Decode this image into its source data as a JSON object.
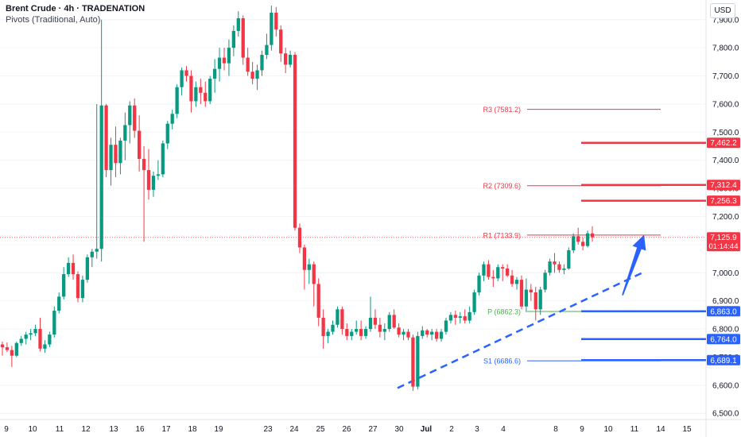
{
  "header": {
    "title": "Brent Crude · 4h · TRADENATION",
    "indicator": "Pivots (Traditional, Auto)",
    "currency": "USD"
  },
  "colors": {
    "up": "#089981",
    "down": "#f23645",
    "resistance": "#f23645",
    "support": "#2962ff",
    "pivot": "#4caf50",
    "trendline": "#2962ff",
    "arrow": "#2962ff"
  },
  "chart_data": {
    "type": "candlestick",
    "title": "Brent Crude · 4h · TRADENATION",
    "ylim": [
      6478,
      7970
    ],
    "y_ticks": [
      "6,500.0",
      "6,600.0",
      "6,700.0",
      "6,800.0",
      "6,900.0",
      "7,000.0",
      "7,100.0",
      "7,200.0",
      "7,300.0",
      "7,400.0",
      "7,500.0",
      "7,600.0",
      "7,700.0",
      "7,800.0",
      "7,900.0"
    ],
    "x_ticks": [
      "9",
      "10",
      "11",
      "12",
      "13",
      "16",
      "17",
      "18",
      "19",
      "23",
      "24",
      "25",
      "26",
      "27",
      "30",
      "Jul",
      "2",
      "3",
      "4",
      "8",
      "9",
      "10",
      "11",
      "14",
      "15"
    ],
    "candles": [
      [
        6745,
        6755,
        6705,
        6735
      ],
      [
        6735,
        6752,
        6718,
        6725
      ],
      [
        6725,
        6740,
        6665,
        6705
      ],
      [
        6705,
        6755,
        6700,
        6750
      ],
      [
        6750,
        6775,
        6740,
        6765
      ],
      [
        6765,
        6790,
        6745,
        6780
      ],
      [
        6780,
        6800,
        6760,
        6785
      ],
      [
        6785,
        6815,
        6775,
        6800
      ],
      [
        6800,
        6840,
        6720,
        6730
      ],
      [
        6730,
        6760,
        6715,
        6745
      ],
      [
        6745,
        6790,
        6735,
        6780
      ],
      [
        6780,
        6880,
        6770,
        6865
      ],
      [
        6865,
        6930,
        6855,
        6915
      ],
      [
        6915,
        7020,
        6905,
        6995
      ],
      [
        6995,
        7055,
        6985,
        7035
      ],
      [
        7035,
        7065,
        6975,
        6995
      ],
      [
        6995,
        7005,
        6895,
        6910
      ],
      [
        6910,
        6990,
        6895,
        6975
      ],
      [
        6975,
        7065,
        6965,
        7055
      ],
      [
        7055,
        7085,
        7020,
        7075
      ],
      [
        7075,
        7600,
        7050,
        7085
      ],
      [
        7085,
        7900,
        7040,
        7595
      ],
      [
        7595,
        7600,
        7340,
        7365
      ],
      [
        7365,
        7480,
        7310,
        7455
      ],
      [
        7455,
        7520,
        7340,
        7390
      ],
      [
        7390,
        7480,
        7350,
        7470
      ],
      [
        7470,
        7570,
        7400,
        7525
      ],
      [
        7525,
        7610,
        7460,
        7595
      ],
      [
        7595,
        7620,
        7480,
        7505
      ],
      [
        7505,
        7560,
        7360,
        7405
      ],
      [
        7405,
        7450,
        7110,
        7365
      ],
      [
        7365,
        7440,
        7260,
        7295
      ],
      [
        7295,
        7360,
        7270,
        7345
      ],
      [
        7345,
        7400,
        7330,
        7350
      ],
      [
        7350,
        7470,
        7340,
        7460
      ],
      [
        7460,
        7540,
        7440,
        7530
      ],
      [
        7530,
        7580,
        7510,
        7565
      ],
      [
        7565,
        7670,
        7550,
        7660
      ],
      [
        7660,
        7730,
        7630,
        7720
      ],
      [
        7720,
        7735,
        7680,
        7700
      ],
      [
        7700,
        7720,
        7570,
        7610
      ],
      [
        7610,
        7680,
        7590,
        7660
      ],
      [
        7660,
        7690,
        7600,
        7640
      ],
      [
        7640,
        7680,
        7590,
        7610
      ],
      [
        7610,
        7700,
        7600,
        7690
      ],
      [
        7690,
        7760,
        7640,
        7725
      ],
      [
        7725,
        7800,
        7680,
        7765
      ],
      [
        7765,
        7800,
        7720,
        7745
      ],
      [
        7745,
        7830,
        7700,
        7800
      ],
      [
        7800,
        7880,
        7770,
        7860
      ],
      [
        7860,
        7930,
        7840,
        7905
      ],
      [
        7905,
        7915,
        7740,
        7765
      ],
      [
        7765,
        7800,
        7700,
        7715
      ],
      [
        7715,
        7750,
        7670,
        7690
      ],
      [
        7690,
        7740,
        7650,
        7720
      ],
      [
        7720,
        7790,
        7700,
        7775
      ],
      [
        7775,
        7850,
        7760,
        7810
      ],
      [
        7810,
        7950,
        7790,
        7925
      ],
      [
        7925,
        7945,
        7840,
        7865
      ],
      [
        7865,
        7880,
        7750,
        7780
      ],
      [
        7780,
        7800,
        7710,
        7740
      ],
      [
        7740,
        7790,
        7730,
        7775
      ],
      [
        7775,
        7785,
        7150,
        7160
      ],
      [
        7160,
        7175,
        7070,
        7090
      ],
      [
        7090,
        7100,
        6940,
        7010
      ],
      [
        7010,
        7050,
        6960,
        7030
      ],
      [
        7030,
        7040,
        6880,
        6960
      ],
      [
        6960,
        6980,
        6810,
        6840
      ],
      [
        6840,
        6870,
        6730,
        6775
      ],
      [
        6775,
        6800,
        6750,
        6790
      ],
      [
        6790,
        6830,
        6780,
        6815
      ],
      [
        6815,
        6880,
        6805,
        6870
      ],
      [
        6870,
        6880,
        6780,
        6800
      ],
      [
        6800,
        6820,
        6760,
        6775
      ],
      [
        6775,
        6800,
        6760,
        6790
      ],
      [
        6790,
        6830,
        6780,
        6800
      ],
      [
        6800,
        6830,
        6760,
        6775
      ],
      [
        6775,
        6810,
        6765,
        6800
      ],
      [
        6800,
        6915,
        6790,
        6840
      ],
      [
        6840,
        6870,
        6800,
        6815
      ],
      [
        6815,
        6840,
        6770,
        6790
      ],
      [
        6790,
        6820,
        6760,
        6800
      ],
      [
        6800,
        6860,
        6790,
        6850
      ],
      [
        6850,
        6870,
        6800,
        6805
      ],
      [
        6805,
        6820,
        6770,
        6780
      ],
      [
        6780,
        6800,
        6760,
        6790
      ],
      [
        6790,
        6800,
        6760,
        6770
      ],
      [
        6770,
        6780,
        6580,
        6595
      ],
      [
        6595,
        6790,
        6585,
        6775
      ],
      [
        6775,
        6810,
        6765,
        6795
      ],
      [
        6795,
        6800,
        6770,
        6780
      ],
      [
        6780,
        6800,
        6760,
        6790
      ],
      [
        6790,
        6800,
        6755,
        6765
      ],
      [
        6765,
        6800,
        6755,
        6790
      ],
      [
        6790,
        6840,
        6780,
        6830
      ],
      [
        6830,
        6860,
        6820,
        6850
      ],
      [
        6850,
        6865,
        6815,
        6840
      ],
      [
        6840,
        6860,
        6820,
        6845
      ],
      [
        6845,
        6870,
        6820,
        6830
      ],
      [
        6830,
        6880,
        6820,
        6860
      ],
      [
        6860,
        6940,
        6850,
        6930
      ],
      [
        6930,
        7000,
        6920,
        6990
      ],
      [
        6990,
        7040,
        6970,
        7030
      ],
      [
        7030,
        7045,
        6975,
        6985
      ],
      [
        6985,
        7010,
        6950,
        6980
      ],
      [
        6980,
        7030,
        6970,
        7020
      ],
      [
        7020,
        7030,
        6970,
        7015
      ],
      [
        7015,
        7030,
        6985,
        6990
      ],
      [
        6990,
        7010,
        6950,
        6960
      ],
      [
        6960,
        6985,
        6940,
        6975
      ],
      [
        6975,
        6990,
        6870,
        6880
      ],
      [
        6880,
        6980,
        6860,
        6940
      ],
      [
        6940,
        6960,
        6900,
        6930
      ],
      [
        6930,
        6950,
        6830,
        6870
      ],
      [
        6870,
        6950,
        6850,
        6940
      ],
      [
        6940,
        7010,
        6930,
        7000
      ],
      [
        7000,
        7050,
        6990,
        7040
      ],
      [
        7040,
        7070,
        7000,
        7030
      ],
      [
        7030,
        7040,
        7000,
        7010
      ],
      [
        7010,
        7030,
        6995,
        7015
      ],
      [
        7015,
        7090,
        7010,
        7080
      ],
      [
        7080,
        7140,
        7070,
        7130
      ],
      [
        7130,
        7160,
        7100,
        7110
      ],
      [
        7110,
        7125,
        7080,
        7095
      ],
      [
        7095,
        7150,
        7090,
        7140
      ],
      [
        7140,
        7165,
        7110,
        7126
      ]
    ],
    "horizontal_lines": [
      {
        "label": "R3 (7581.2)",
        "value": 7581.2,
        "role": "pivot"
      },
      {
        "label": "R2 (7309.6)",
        "value": 7309.6,
        "role": "pivot"
      },
      {
        "label": "R1 (7133.9)",
        "value": 7133.9,
        "role": "pivot"
      },
      {
        "label": "P (6862.3)",
        "value": 6862.3,
        "role": "pivot"
      },
      {
        "label": "S1 (6686.6)",
        "value": 6686.6,
        "role": "pivot"
      },
      {
        "label": "",
        "value": 7462.2,
        "role": "level"
      },
      {
        "label": "",
        "value": 7312.4,
        "role": "level"
      },
      {
        "label": "",
        "value": 7256.3,
        "role": "level"
      },
      {
        "label": "",
        "value": 6863.0,
        "role": "level"
      },
      {
        "label": "",
        "value": 6764.0,
        "role": "level"
      },
      {
        "label": "",
        "value": 6689.1,
        "role": "level"
      }
    ],
    "price_labels": [
      {
        "text": "7,462.2",
        "value": 7462.2,
        "color": "#f23645"
      },
      {
        "text": "7,312.4",
        "value": 7312.4,
        "color": "#f23645"
      },
      {
        "text": "7,256.3",
        "value": 7256.3,
        "color": "#f23645"
      },
      {
        "text": "7,125.9",
        "value": 7125.9,
        "color": "#f23645",
        "sub": "01:14:44"
      },
      {
        "text": "6,863.0",
        "value": 6863.0,
        "color": "#2962ff"
      },
      {
        "text": "6,764.0",
        "value": 6764.0,
        "color": "#2962ff"
      },
      {
        "text": "6,689.1",
        "value": 6689.1,
        "color": "#2962ff"
      }
    ],
    "current_price": 7125.9,
    "countdown": "01:14:44",
    "trendline": {
      "from": 6590,
      "to": 7000,
      "style": "dashed"
    },
    "arrow": {
      "from": 6920,
      "to": 7135,
      "direction": "up"
    }
  }
}
